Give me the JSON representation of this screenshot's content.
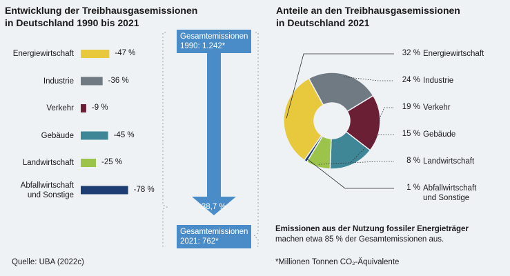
{
  "left_title": [
    "Entwicklung der Treibhausgasemissionen",
    "in Deutschland 1990 bis 2021"
  ],
  "right_title": [
    "Anteile an den Treibhausgasemissionen",
    "in Deutschland 2021"
  ],
  "total_1990": [
    "Gesamtemissionen",
    "1990: 1.242*"
  ],
  "total_2021": [
    "Gesamtemissionen",
    "2021: 762*"
  ],
  "change_label": "-38,7 %",
  "source": "Quelle: UBA (2022c)",
  "footnote_bold": "Emissionen aus der Nutzung fossiler Energieträger",
  "footnote_text": "machen etwa 85 % der Gesamtemissionen aus.",
  "unit_note": "*Millionen Tonnen CO₂-Äquivalente",
  "colors": {
    "energie": "#e8c93e",
    "industrie": "#6f7a82",
    "verkehr": "#6a1f35",
    "gebaeude": "#3f8797",
    "landwirtschaft": "#9cc44a",
    "abfall": "#1e3d73",
    "box": "#4a8cc8",
    "background": "#eef2f5"
  },
  "chart_data": [
    {
      "type": "bar",
      "orientation": "horizontal",
      "categories": [
        "Energiewirtschaft",
        "Industrie",
        "Verkehr",
        "Gebäude",
        "Landwirtschaft",
        "Abfallwirtschaft und Sonstige"
      ],
      "category_lines": [
        [
          "Energiewirtschaft"
        ],
        [
          "Industrie"
        ],
        [
          "Verkehr"
        ],
        [
          "Gebäude"
        ],
        [
          "Landwirtschaft"
        ],
        [
          "Abfallwirtschaft",
          "und Sonstige"
        ]
      ],
      "values": [
        -47,
        -36,
        -9,
        -45,
        -25,
        -78
      ],
      "value_labels": [
        "-47 %",
        "-36 %",
        "-9 %",
        "-45 %",
        "-25 %",
        "-78 %"
      ],
      "color_keys": [
        "energie",
        "industrie",
        "verkehr",
        "gebaeude",
        "landwirtschaft",
        "abfall"
      ]
    },
    {
      "type": "pie",
      "donut": true,
      "labels": [
        "Energiewirtschaft",
        "Industrie",
        "Verkehr",
        "Gebäude",
        "Landwirtschaft",
        "Abfallwirtschaft und Sonstige"
      ],
      "label_lines": [
        [
          "Energiewirtschaft"
        ],
        [
          "Industrie"
        ],
        [
          "Verkehr"
        ],
        [
          "Gebäude"
        ],
        [
          "Landwirtschaft"
        ],
        [
          "Abfallwirtschaft",
          "und Sonstige"
        ]
      ],
      "values": [
        32,
        24,
        19,
        15,
        8,
        1
      ],
      "value_labels": [
        "32 %",
        "24 %",
        "19 %",
        "15 %",
        "8 %",
        "1 %"
      ],
      "color_keys": [
        "energie",
        "industrie",
        "verkehr",
        "gebaeude",
        "landwirtschaft",
        "abfall"
      ]
    }
  ]
}
